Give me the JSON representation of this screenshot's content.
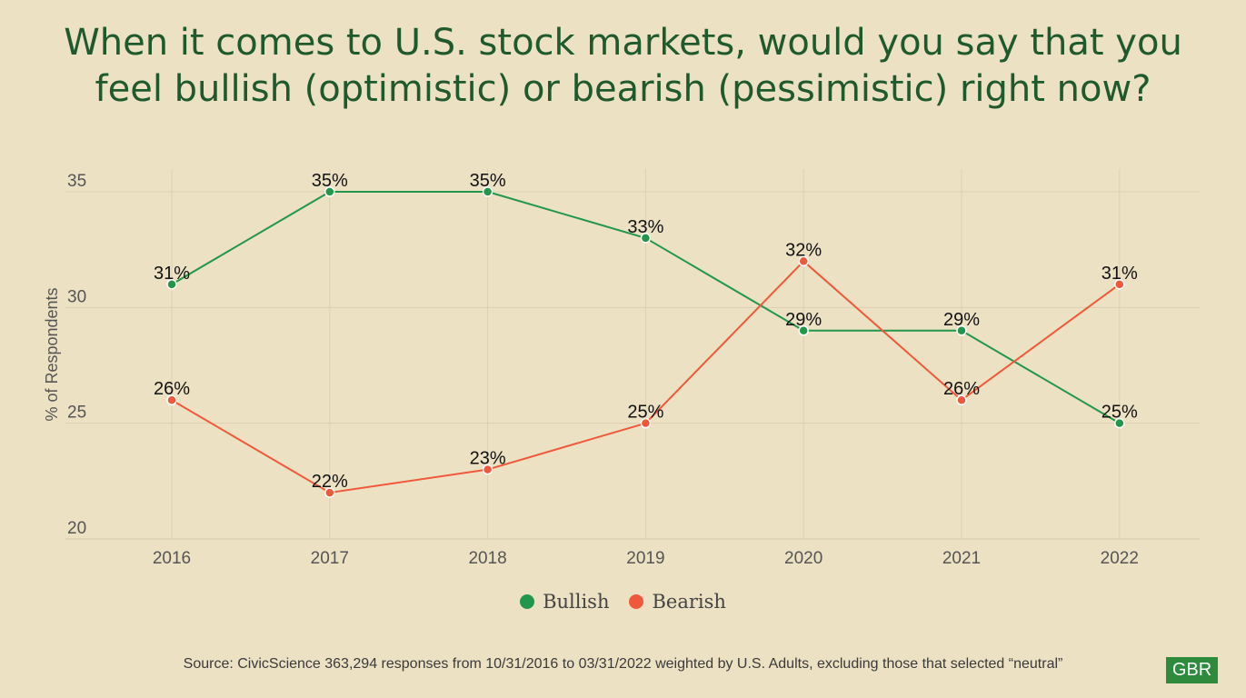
{
  "title_lines": [
    "When it comes to U.S. stock markets, would you say that you",
    "feel bullish (optimistic) or bearish (pessimistic) right now?"
  ],
  "source": "Source: CivicScience 363,294 responses from 10/31/2016 to 03/31/2022 weighted by U.S. Adults, excluding those that selected “neutral”",
  "badge": "GBR",
  "chart_data": {
    "type": "line",
    "title": "When it comes to U.S. stock markets, would you say that you feel bullish (optimistic) or bearish (pessimistic) right now?",
    "xlabel": "",
    "ylabel": "% of Respondents",
    "categories": [
      "2016",
      "2017",
      "2018",
      "2019",
      "2020",
      "2021",
      "2022"
    ],
    "ylim": [
      20,
      35
    ],
    "yticks": [
      20,
      25,
      30,
      35
    ],
    "grid": true,
    "legend": "bottom-center",
    "series": [
      {
        "name": "Bullish",
        "color": "#22974b",
        "values": [
          31,
          35,
          35,
          33,
          29,
          29,
          25
        ],
        "labels": [
          "31%",
          "35%",
          "35%",
          "33%",
          "29%",
          "29%",
          "25%"
        ]
      },
      {
        "name": "Bearish",
        "color": "#f0583b",
        "values": [
          26,
          22,
          23,
          25,
          32,
          26,
          31
        ],
        "labels": [
          "26%",
          "22%",
          "23%",
          "25%",
          "32%",
          "26%",
          "31%"
        ]
      }
    ]
  }
}
